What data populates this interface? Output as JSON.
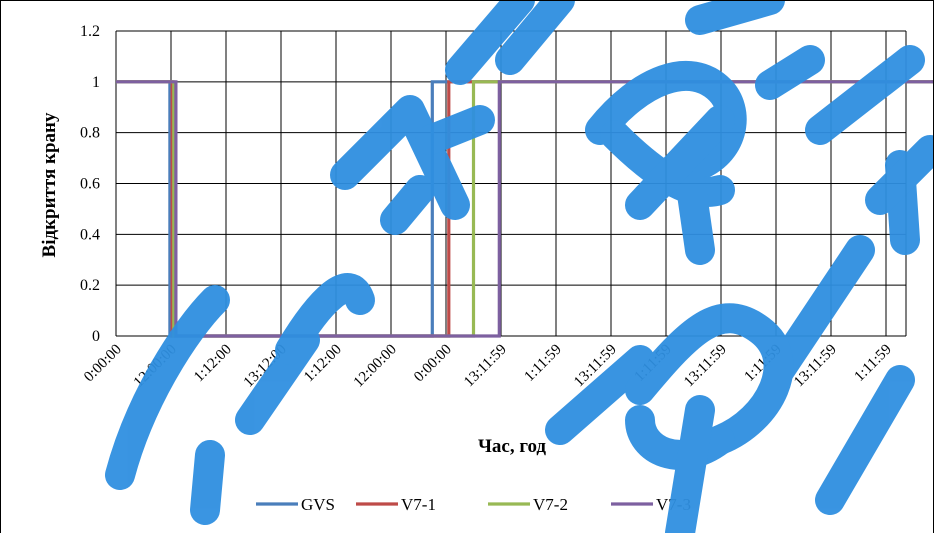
{
  "colors": {
    "GVS": "#4a7ebb",
    "V7-1": "#be4b48",
    "V7-2": "#98b954",
    "V7-3": "#7d60a0",
    "grid": "#000000",
    "watermark": "#2f8fe0"
  },
  "chart_data": {
    "type": "line",
    "title": "",
    "xlabel": "Час, год",
    "ylabel": "Відкриття крану",
    "ylim": [
      0,
      1.2
    ],
    "yticks": [
      "0",
      "0.2",
      "0.4",
      "0.6",
      "0.8",
      "1",
      "1.2"
    ],
    "categories": [
      "0:00:00",
      "12:00:00",
      "1:12:00",
      "13:12:00",
      "1:12:00",
      "12:00:00",
      "0:00:00",
      "13:11:59",
      "1:11:59",
      "13:11:59",
      "1:11:59",
      "13:11:59",
      "1:11:59",
      "13:11:59",
      "1:11:59"
    ],
    "grid": true,
    "legend_position": "bottom",
    "series": [
      {
        "name": "GVS",
        "x": [
          0,
          0.98,
          0.98,
          5.75,
          5.75,
          15.2
        ],
        "values": [
          1,
          1,
          0,
          0,
          1,
          1
        ]
      },
      {
        "name": "V7-1",
        "x": [
          0,
          1.02,
          1.02,
          6.05,
          6.05,
          15.2
        ],
        "values": [
          1,
          1,
          0,
          0,
          1,
          1
        ]
      },
      {
        "name": "V7-2",
        "x": [
          0,
          1.05,
          1.05,
          6.5,
          6.5,
          15.2
        ],
        "values": [
          1,
          1,
          0,
          0,
          1,
          1
        ]
      },
      {
        "name": "V7-3",
        "x": [
          0,
          1.09,
          1.09,
          6.97,
          6.97,
          15.2
        ],
        "values": [
          1,
          1,
          0,
          0,
          1,
          1
        ]
      }
    ]
  }
}
